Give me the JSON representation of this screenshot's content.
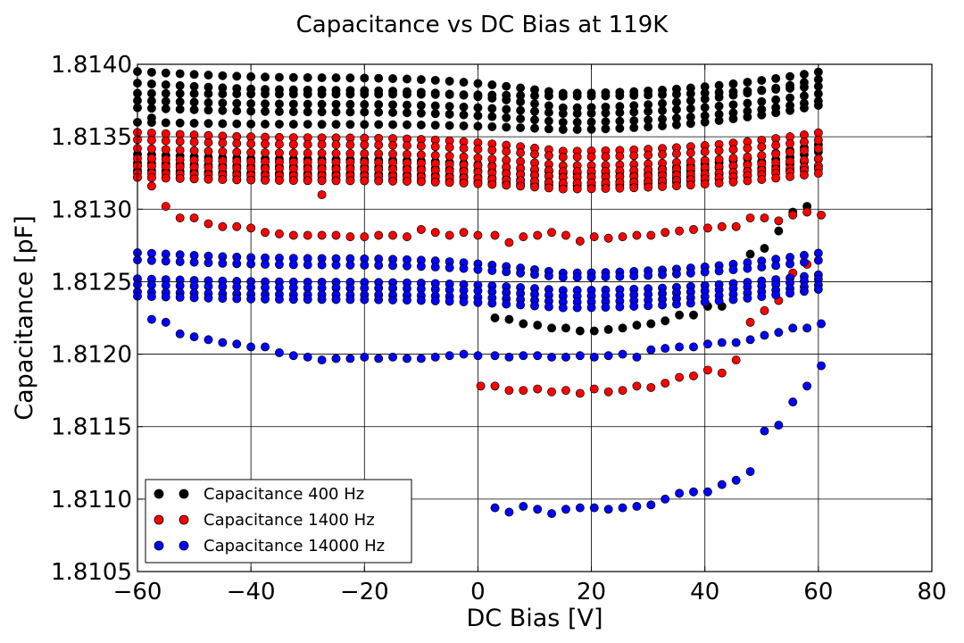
{
  "chart_data": {
    "type": "scatter",
    "title": "Capacitance vs DC Bias at 119K",
    "xlabel": "DC Bias [V]",
    "ylabel": "Capacitance [pF]",
    "xlim": [
      -60,
      80
    ],
    "ylim": [
      1.8105,
      1.814
    ],
    "x_ticks": [
      -60,
      -40,
      -20,
      0,
      20,
      40,
      60,
      80
    ],
    "x_tick_labels": [
      "−60",
      "−40",
      "−20",
      "0",
      "20",
      "40",
      "60",
      "80"
    ],
    "y_ticks": [
      1.8105,
      1.811,
      1.8115,
      1.812,
      1.8125,
      1.813,
      1.8135,
      1.814
    ],
    "y_tick_labels": [
      "1.8105",
      "1.8110",
      "1.8115",
      "1.8120",
      "1.8125",
      "1.8130",
      "1.8135",
      "1.8140"
    ],
    "grid": true,
    "legend_position": "lower-left",
    "series": [
      {
        "name": "Capacitance 400 Hz",
        "color": "#000000",
        "bands": [
          {
            "y_left": 1.81395,
            "y_mid": 1.8138,
            "y_right": 1.81395
          },
          {
            "y_left": 1.81387,
            "y_mid": 1.8137,
            "y_right": 1.8139
          },
          {
            "y_left": 1.8138,
            "y_mid": 1.81378,
            "y_right": 1.81385
          },
          {
            "y_left": 1.81375,
            "y_mid": 1.81366,
            "y_right": 1.8138
          },
          {
            "y_left": 1.8137,
            "y_mid": 1.8136,
            "y_right": 1.81375
          },
          {
            "y_left": 1.8136,
            "y_mid": 1.81355,
            "y_right": 1.81372
          },
          {
            "y_left": 1.81338,
            "y_mid": 1.81325,
            "y_right": 1.81345
          },
          {
            "y_left": 1.81332,
            "y_mid": 1.81322,
            "y_right": 1.8134
          },
          {
            "y_left": 1.81327,
            "y_mid": 1.81318,
            "y_right": 1.81335
          },
          {
            "y_left": 1.81322,
            "y_mid": 1.81316,
            "y_right": 1.8133
          }
        ],
        "extra": {
          "x": [
            3,
            5.5,
            8,
            10.5,
            13,
            15.5,
            18,
            20.5,
            23,
            25.5,
            28,
            30.5,
            33,
            35.5,
            38,
            40.5,
            43,
            48,
            50.5,
            53,
            55.5,
            58,
            -57.5
          ],
          "y": [
            1.81225,
            1.81224,
            1.81221,
            1.8122,
            1.81218,
            1.81218,
            1.81216,
            1.81216,
            1.81217,
            1.81218,
            1.8122,
            1.81221,
            1.81223,
            1.81227,
            1.81227,
            1.81233,
            1.81233,
            1.81269,
            1.81273,
            1.81285,
            1.81298,
            1.81302,
            1.81363
          ]
        }
      },
      {
        "name": "Capacitance 1400 Hz",
        "color": "#ff0000",
        "bands": [
          {
            "y_left": 1.81353,
            "y_mid": 1.8134,
            "y_right": 1.81353
          },
          {
            "y_left": 1.81348,
            "y_mid": 1.81336,
            "y_right": 1.81348
          },
          {
            "y_left": 1.81342,
            "y_mid": 1.8133,
            "y_right": 1.81342
          },
          {
            "y_left": 1.81335,
            "y_mid": 1.81326,
            "y_right": 1.81335
          },
          {
            "y_left": 1.8133,
            "y_mid": 1.81322,
            "y_right": 1.8133
          },
          {
            "y_left": 1.81325,
            "y_mid": 1.81318,
            "y_right": 1.81328
          },
          {
            "y_left": 1.81322,
            "y_mid": 1.81314,
            "y_right": 1.81325
          }
        ],
        "extra": {
          "x": [
            -57.5,
            -55,
            -52.5,
            -50,
            -47.5,
            -45,
            -42.5,
            -40,
            -37.5,
            -35,
            -32.5,
            -30,
            -27.5,
            -25,
            -22.5,
            -20,
            -17.5,
            -15,
            -12.5,
            -10,
            -7.5,
            -5,
            -2.5,
            0,
            3,
            5.5,
            8,
            10.5,
            13,
            15.5,
            18,
            20.5,
            23,
            25.5,
            28,
            30.5,
            33,
            35.5,
            38,
            40.5,
            43,
            45.5,
            48,
            50.5,
            53,
            55.5,
            58,
            60.5,
            0.5,
            3,
            5.5,
            8,
            10.5,
            13,
            15.5,
            18,
            20.5,
            23,
            25.5,
            28,
            30.5,
            33,
            35.5,
            38,
            40.5,
            43,
            45.5,
            48,
            50.5,
            53,
            55.5,
            58,
            -57.5,
            -27.5
          ],
          "y": [
            1.81316,
            1.81302,
            1.81294,
            1.81294,
            1.8129,
            1.81288,
            1.81288,
            1.81287,
            1.81284,
            1.81283,
            1.81282,
            1.81282,
            1.81282,
            1.81282,
            1.81281,
            1.81281,
            1.81282,
            1.81282,
            1.81281,
            1.81286,
            1.81284,
            1.81282,
            1.81284,
            1.81282,
            1.81282,
            1.81277,
            1.81281,
            1.81282,
            1.81284,
            1.81282,
            1.81278,
            1.81281,
            1.8128,
            1.81281,
            1.81282,
            1.81282,
            1.81284,
            1.81285,
            1.81286,
            1.81287,
            1.81288,
            1.81288,
            1.81294,
            1.81294,
            1.81292,
            1.81296,
            1.81298,
            1.81296,
            1.81178,
            1.81178,
            1.81175,
            1.81175,
            1.81176,
            1.81174,
            1.81175,
            1.81173,
            1.81176,
            1.81174,
            1.81175,
            1.81178,
            1.81177,
            1.8118,
            1.81184,
            1.81185,
            1.81189,
            1.81187,
            1.81196,
            1.81222,
            1.8123,
            1.81237,
            1.81256,
            1.81262,
            1.81335,
            1.8131
          ]
        }
      },
      {
        "name": "Capacitance 14000 Hz",
        "color": "#0000ff",
        "bands": [
          {
            "y_left": 1.8127,
            "y_mid": 1.81256,
            "y_right": 1.8127
          },
          {
            "y_left": 1.81265,
            "y_mid": 1.81253,
            "y_right": 1.81265
          },
          {
            "y_left": 1.81252,
            "y_mid": 1.81244,
            "y_right": 1.81255
          },
          {
            "y_left": 1.81248,
            "y_mid": 1.8124,
            "y_right": 1.81252
          },
          {
            "y_left": 1.81243,
            "y_mid": 1.81236,
            "y_right": 1.81248
          },
          {
            "y_left": 1.8124,
            "y_mid": 1.81232,
            "y_right": 1.81245
          }
        ],
        "extra": {
          "x": [
            -57.5,
            -55,
            -52.5,
            -50,
            -47.5,
            -45,
            -42.5,
            -40,
            -37.5,
            -35,
            -32.5,
            -30,
            -27.5,
            -25,
            -22.5,
            -20,
            -17.5,
            -15,
            -12.5,
            -10,
            -7.5,
            -5,
            -2.5,
            0,
            3,
            5.5,
            8,
            10.5,
            13,
            15.5,
            18,
            20.5,
            23,
            25.5,
            28,
            30.5,
            33,
            35.5,
            38,
            40.5,
            43,
            45.5,
            48,
            50.5,
            53,
            55.5,
            58,
            60.5,
            3,
            5.5,
            8,
            10.5,
            13,
            15.5,
            18,
            20.5,
            23,
            25.5,
            28,
            30.5,
            33,
            35.5,
            38,
            40.5,
            43,
            45.5,
            48,
            50.5,
            53,
            55.5,
            58,
            60.5
          ],
          "y": [
            1.81224,
            1.81222,
            1.81214,
            1.81212,
            1.8121,
            1.81208,
            1.81207,
            1.81205,
            1.81205,
            1.81201,
            1.81199,
            1.81198,
            1.81196,
            1.81197,
            1.81197,
            1.81198,
            1.81197,
            1.81198,
            1.81197,
            1.81197,
            1.81198,
            1.81199,
            1.812,
            1.81199,
            1.81199,
            1.81198,
            1.81199,
            1.81199,
            1.81198,
            1.81198,
            1.81199,
            1.81198,
            1.81199,
            1.812,
            1.81198,
            1.81203,
            1.81204,
            1.81205,
            1.81205,
            1.81207,
            1.81208,
            1.81208,
            1.8121,
            1.81213,
            1.81215,
            1.81218,
            1.81218,
            1.81221,
            1.81094,
            1.81091,
            1.81095,
            1.81093,
            1.8109,
            1.81093,
            1.81094,
            1.81094,
            1.81093,
            1.81094,
            1.81095,
            1.81096,
            1.811,
            1.81104,
            1.81105,
            1.81105,
            1.8111,
            1.81113,
            1.81119,
            1.81147,
            1.81151,
            1.81167,
            1.81178,
            1.81192
          ]
        }
      }
    ]
  }
}
